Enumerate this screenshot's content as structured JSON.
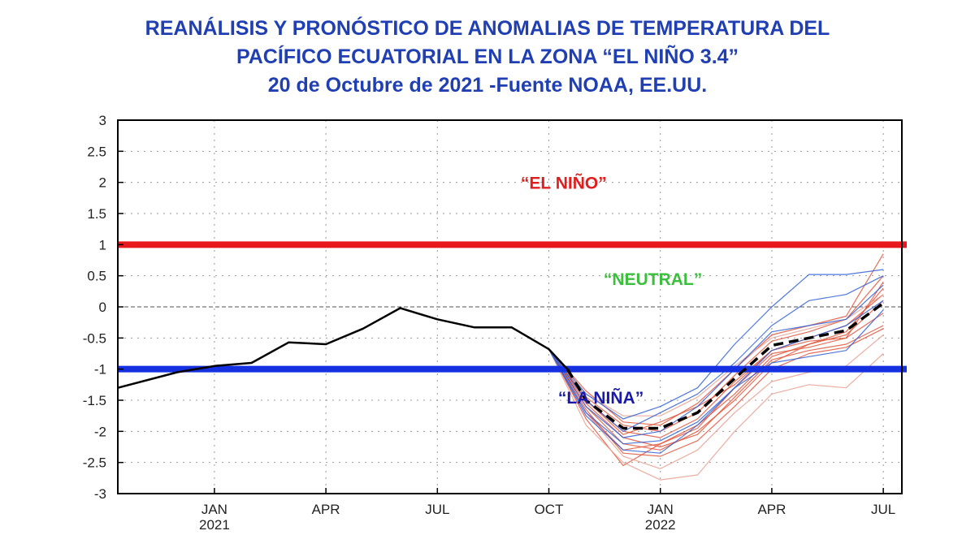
{
  "title_lines": [
    "REANÁLISIS Y PRONÓSTICO  DE ANOMALIAS DE TEMPERATURA DEL",
    "PACÍFICO ECUATORIAL EN LA ZONA “EL NIÑO 3.4”",
    "20 de Octubre de 2021 -Fuente NOAA, EE.UU."
  ],
  "colors": {
    "title": "#1f3fb3",
    "el_nino": "#e01e1e",
    "la_nina": "#1a1aa8",
    "neutral": "#3cbf3c",
    "threshold_upper": "#e8181f",
    "threshold_lower": "#1530e0",
    "observed": "#000000",
    "ensemble_red": "#e2553a",
    "ensemble_blue": "#3060d8",
    "ensemble_faint": "#e8a090"
  },
  "chart_data": {
    "type": "line",
    "title": "REANÁLISIS Y PRONÓSTICO DE ANOMALIAS DE TEMPERATURA DEL PACÍFICO ECUATORIAL EN LA ZONA “EL NIÑO 3.4”",
    "xlabel": "",
    "ylabel": "",
    "x_months_range": [
      -2.6,
      18.5
    ],
    "ylim": [
      -3,
      3
    ],
    "y_ticks": [
      "3",
      "2.5",
      "2",
      "1.5",
      "1",
      "0.5",
      "0",
      "-0.5",
      "-1",
      "-1.5",
      "-2",
      "-2.5",
      "-3"
    ],
    "y_tick_values": [
      3,
      2.5,
      2,
      1.5,
      1,
      0.5,
      0,
      -0.5,
      -1,
      -1.5,
      -2,
      -2.5,
      -3
    ],
    "x_ticks": [
      {
        "month": 0,
        "label": "JAN",
        "year": "2021"
      },
      {
        "month": 3,
        "label": "APR",
        "year": ""
      },
      {
        "month": 6,
        "label": "JUL",
        "year": ""
      },
      {
        "month": 9,
        "label": "OCT",
        "year": ""
      },
      {
        "month": 12,
        "label": "JAN",
        "year": "2022"
      },
      {
        "month": 15,
        "label": "APR",
        "year": ""
      },
      {
        "month": 18,
        "label": "JUL",
        "year": ""
      }
    ],
    "grid": true,
    "thresholds": [
      {
        "name": "El Niño threshold",
        "value": 1.0
      },
      {
        "name": "La Niña threshold",
        "value": -1.0
      }
    ],
    "regions": [
      {
        "label": "“EL NIÑO”",
        "x": 9.4,
        "y": 1.9,
        "color_key": "el_nino"
      },
      {
        "label": "“NEUTRAL”",
        "x": 11.8,
        "y": 0.35,
        "color_key": "neutral"
      },
      {
        "label": "“LA NIÑA”",
        "x": 10.4,
        "y": -1.55,
        "color_key": "la_nina"
      }
    ],
    "series": [
      {
        "name": "Observed reanalysis",
        "style": "solid",
        "x": [
          -2.6,
          -1,
          0,
          1,
          2,
          3,
          4,
          5,
          6,
          7,
          8,
          9,
          9.5
        ],
        "values": [
          -1.3,
          -1.05,
          -0.95,
          -0.9,
          -0.57,
          -0.6,
          -0.35,
          -0.02,
          -0.2,
          -0.33,
          -0.33,
          -0.68,
          -1.0
        ]
      },
      {
        "name": "Ensemble mean forecast",
        "style": "dashed",
        "x": [
          9.5,
          10,
          11,
          12,
          13,
          14,
          15,
          16,
          17,
          18
        ],
        "values": [
          -1.0,
          -1.5,
          -1.95,
          -1.95,
          -1.7,
          -1.15,
          -0.62,
          -0.5,
          -0.38,
          0.06
        ]
      }
    ],
    "ensemble_members": [
      {
        "color_key": "ensemble_red",
        "x": [
          9,
          10,
          11,
          12,
          13,
          14,
          15,
          16,
          17,
          18
        ],
        "values": [
          -0.68,
          -1.6,
          -2.2,
          -2.3,
          -2.0,
          -1.5,
          -0.9,
          -0.6,
          -0.4,
          0.3
        ]
      },
      {
        "color_key": "ensemble_red",
        "x": [
          9,
          10,
          11,
          12,
          13,
          14,
          15,
          16,
          17,
          18
        ],
        "values": [
          -0.68,
          -1.5,
          -2.0,
          -2.1,
          -1.8,
          -1.2,
          -0.7,
          -0.5,
          -0.3,
          0.2
        ]
      },
      {
        "color_key": "ensemble_red",
        "x": [
          9,
          10,
          11,
          12,
          13,
          14,
          15,
          16,
          17,
          18
        ],
        "values": [
          -0.68,
          -1.7,
          -2.3,
          -2.2,
          -1.9,
          -1.4,
          -0.8,
          -0.6,
          -0.45,
          0.1
        ]
      },
      {
        "color_key": "ensemble_red",
        "x": [
          9,
          10,
          11,
          12,
          13,
          14,
          15,
          16,
          17,
          18
        ],
        "values": [
          -0.68,
          -1.45,
          -1.9,
          -2.0,
          -1.7,
          -1.1,
          -0.55,
          -0.4,
          -0.2,
          0.5
        ]
      },
      {
        "color_key": "ensemble_red",
        "x": [
          9,
          10,
          11,
          12,
          13,
          14,
          15,
          16,
          17,
          18
        ],
        "values": [
          -0.68,
          -1.8,
          -2.55,
          -2.2,
          -1.95,
          -1.3,
          -0.75,
          -0.65,
          -0.5,
          -0.1
        ]
      },
      {
        "color_key": "ensemble_red",
        "x": [
          9,
          10,
          11,
          12,
          13,
          14,
          15,
          16,
          17,
          18
        ],
        "values": [
          -0.68,
          -1.55,
          -2.1,
          -2.25,
          -2.05,
          -1.45,
          -0.85,
          -0.7,
          -0.6,
          -0.3
        ]
      },
      {
        "color_key": "ensemble_red",
        "x": [
          9,
          10,
          11,
          12,
          13,
          14,
          15,
          16,
          17,
          18
        ],
        "values": [
          -0.68,
          -1.35,
          -1.85,
          -1.9,
          -1.55,
          -1.0,
          -0.45,
          -0.3,
          -0.15,
          0.85
        ]
      },
      {
        "color_key": "ensemble_red",
        "x": [
          9,
          10,
          11,
          12,
          13,
          14,
          15,
          16,
          17,
          18
        ],
        "values": [
          -0.68,
          -1.65,
          -2.35,
          -2.4,
          -2.15,
          -1.6,
          -1.0,
          -0.75,
          -0.65,
          -0.35
        ]
      },
      {
        "color_key": "ensemble_red",
        "x": [
          9,
          10,
          11,
          12,
          13,
          14,
          15,
          16,
          17,
          18
        ],
        "values": [
          -0.68,
          -1.5,
          -2.05,
          -1.85,
          -1.6,
          -1.25,
          -0.7,
          -0.55,
          -0.5,
          0.4
        ]
      },
      {
        "color_key": "ensemble_faint",
        "x": [
          9,
          10,
          11,
          12,
          13,
          14,
          15,
          16,
          17,
          18
        ],
        "values": [
          -0.68,
          -1.9,
          -2.5,
          -2.78,
          -2.7,
          -2.0,
          -1.4,
          -1.25,
          -1.3,
          -0.75
        ]
      },
      {
        "color_key": "ensemble_faint",
        "x": [
          9,
          10,
          11,
          12,
          13,
          14,
          15,
          16,
          17,
          18
        ],
        "values": [
          -0.68,
          -1.4,
          -1.75,
          -1.75,
          -1.45,
          -0.95,
          -0.5,
          -0.35,
          -0.2,
          0.2
        ]
      },
      {
        "color_key": "ensemble_faint",
        "x": [
          9,
          10,
          11,
          12,
          13,
          14,
          15,
          16,
          17,
          18
        ],
        "values": [
          -0.68,
          -1.7,
          -2.4,
          -2.6,
          -2.3,
          -1.7,
          -1.2,
          -1.05,
          -0.95,
          -0.45
        ]
      },
      {
        "color_key": "ensemble_blue",
        "x": [
          9,
          10,
          11,
          12,
          13,
          14,
          15,
          16,
          17,
          18
        ],
        "values": [
          -0.68,
          -1.4,
          -1.8,
          -1.6,
          -1.3,
          -0.6,
          0.0,
          0.52,
          0.52,
          0.6
        ]
      },
      {
        "color_key": "ensemble_blue",
        "x": [
          9,
          10,
          11,
          12,
          13,
          14,
          15,
          16,
          17,
          18
        ],
        "values": [
          -0.68,
          -1.6,
          -2.1,
          -2.0,
          -1.6,
          -1.0,
          -0.4,
          -0.3,
          -0.2,
          0.35
        ]
      },
      {
        "color_key": "ensemble_blue",
        "x": [
          9,
          10,
          11,
          12,
          13,
          14,
          15,
          16,
          17,
          18
        ],
        "values": [
          -0.68,
          -1.75,
          -2.3,
          -2.35,
          -1.9,
          -1.3,
          -0.7,
          -0.5,
          -0.3,
          0.1
        ]
      },
      {
        "color_key": "ensemble_blue",
        "x": [
          9,
          10,
          11,
          12,
          13,
          14,
          15,
          16,
          17,
          18
        ],
        "values": [
          -0.68,
          -1.5,
          -2.0,
          -1.7,
          -1.4,
          -0.9,
          -0.3,
          0.1,
          0.2,
          0.5
        ]
      },
      {
        "color_key": "ensemble_blue",
        "x": [
          9,
          10,
          11,
          12,
          13,
          14,
          15,
          16,
          17,
          18
        ],
        "values": [
          -0.68,
          -1.7,
          -2.2,
          -2.15,
          -1.85,
          -1.3,
          -0.9,
          -0.8,
          -0.7,
          -0.05
        ]
      }
    ]
  }
}
